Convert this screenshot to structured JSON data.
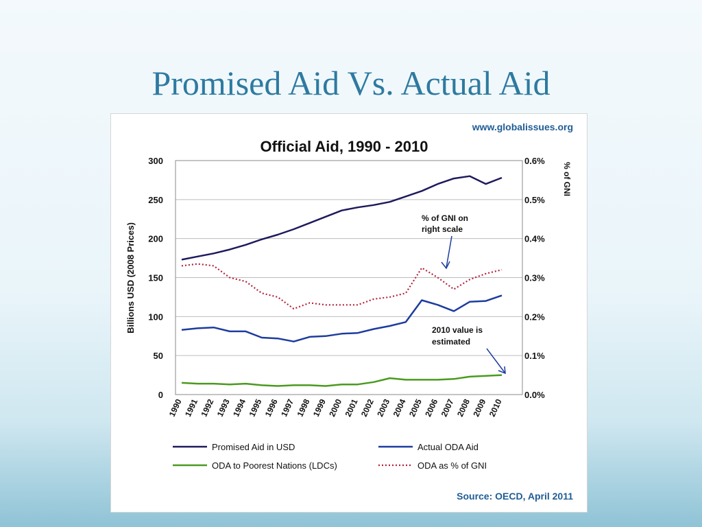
{
  "slide": {
    "title": "Promised Aid Vs. Actual Aid"
  },
  "chart_data": {
    "type": "line",
    "title": "Official Aid, 1990 - 2010",
    "source": "Source: OECD, April 2011",
    "website": "www.globalissues.org",
    "ylabel_left": "Billions USD (2008 Prices)",
    "ylabel_right": "% of GNI",
    "ylim_left": [
      0,
      300
    ],
    "ylim_right": [
      0,
      0.6
    ],
    "yticks_left": [
      "0",
      "50",
      "100",
      "150",
      "200",
      "250",
      "300"
    ],
    "yticks_right": [
      "0.0%",
      "0.1%",
      "0.2%",
      "0.3%",
      "0.4%",
      "0.5%",
      "0.6%"
    ],
    "grid": true,
    "categories": [
      "1990",
      "1991",
      "1992",
      "1993",
      "1994",
      "1995",
      "1996",
      "1997",
      "1998",
      "1999",
      "2000",
      "2001",
      "2002",
      "2003",
      "2004",
      "2005",
      "2006",
      "2007",
      "2008",
      "2009",
      "2010"
    ],
    "series": [
      {
        "name": "Promised Aid in USD",
        "color": "#1f1a5c",
        "style": "solid",
        "axis": "left",
        "values": [
          173,
          177,
          181,
          186,
          192,
          199,
          205,
          212,
          220,
          228,
          236,
          240,
          243,
          247,
          254,
          261,
          270,
          277,
          280,
          270,
          278
        ]
      },
      {
        "name": "Actual ODA Aid",
        "color": "#1c3c9e",
        "style": "solid",
        "axis": "left",
        "values": [
          83,
          85,
          86,
          81,
          81,
          73,
          72,
          68,
          74,
          75,
          78,
          79,
          84,
          88,
          93,
          121,
          115,
          107,
          119,
          120,
          127
        ]
      },
      {
        "name": "ODA to Poorest Nations (LDCs)",
        "color": "#4a9a1e",
        "style": "solid",
        "axis": "left",
        "values": [
          15,
          14,
          14,
          13,
          14,
          12,
          11,
          12,
          12,
          11,
          13,
          13,
          16,
          21,
          19,
          19,
          19,
          20,
          23,
          24,
          25
        ]
      },
      {
        "name": "ODA as % of GNI",
        "color": "#b5203a",
        "style": "dotted",
        "axis": "right",
        "values": [
          0.33,
          0.335,
          0.33,
          0.3,
          0.29,
          0.26,
          0.25,
          0.22,
          0.235,
          0.23,
          0.23,
          0.23,
          0.245,
          0.25,
          0.26,
          0.325,
          0.3,
          0.27,
          0.295,
          0.31,
          0.32
        ]
      }
    ],
    "annotations": [
      {
        "lines": [
          "% of GNI on",
          "right scale"
        ],
        "points_to": "2006"
      },
      {
        "lines": [
          "2010 value is",
          "estimated"
        ],
        "points_to": "2010"
      }
    ],
    "legend": {
      "position": "bottom"
    }
  }
}
